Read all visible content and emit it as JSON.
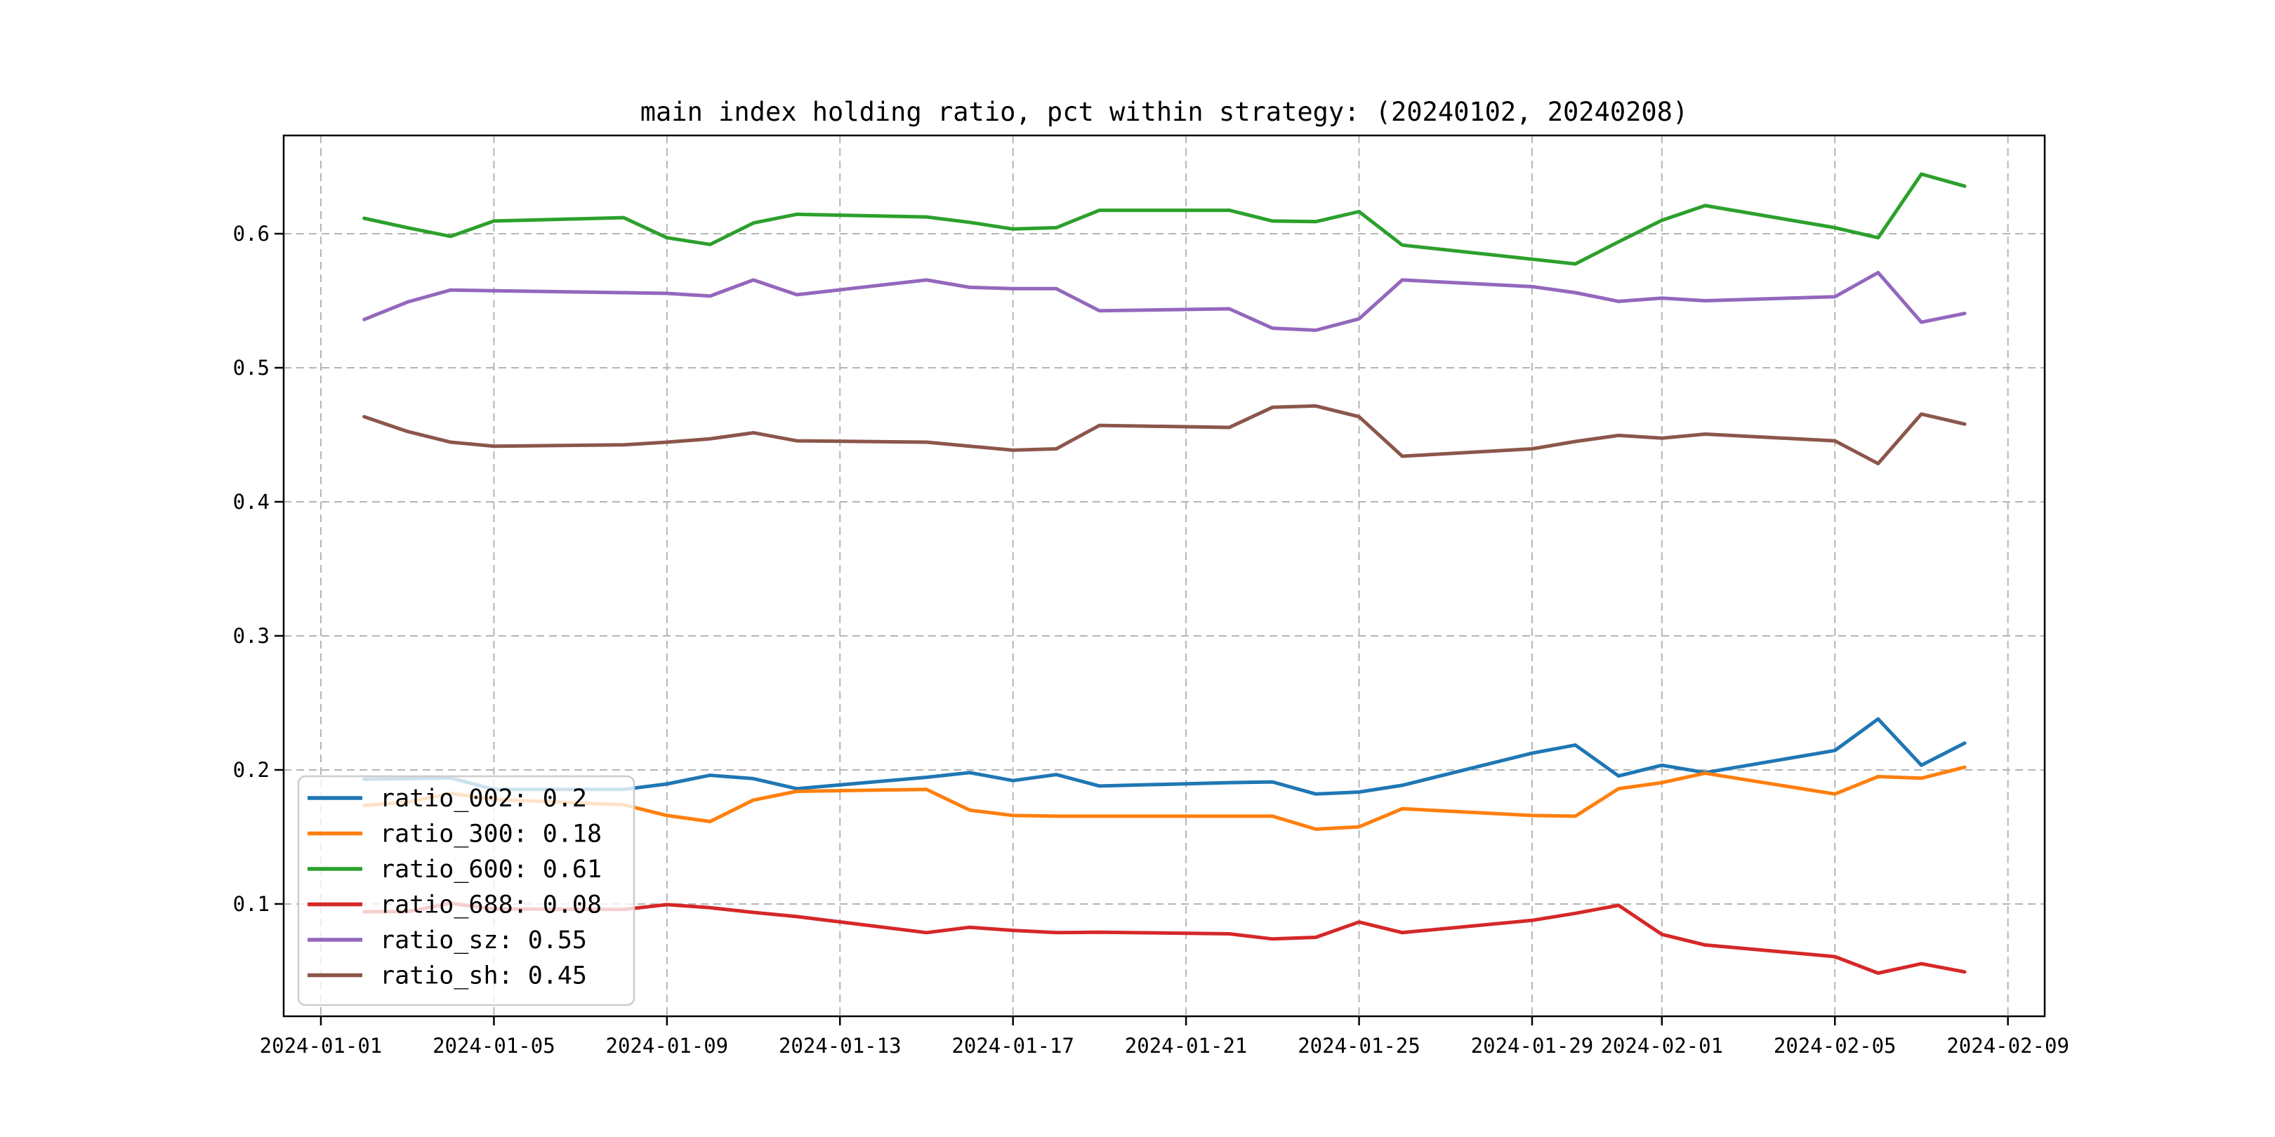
{
  "chart_data": {
    "type": "line",
    "title": "main index holding ratio, pct within strategy: (20240102, 20240208)",
    "grid": true,
    "legend_position": "lower left",
    "background_color": "#ffffff",
    "grid_color": "#b5b5b5",
    "spine_color": "#000000",
    "x_dates": [
      "2024-01-02",
      "2024-01-03",
      "2024-01-04",
      "2024-01-05",
      "2024-01-08",
      "2024-01-09",
      "2024-01-10",
      "2024-01-11",
      "2024-01-12",
      "2024-01-15",
      "2024-01-16",
      "2024-01-17",
      "2024-01-18",
      "2024-01-19",
      "2024-01-22",
      "2024-01-23",
      "2024-01-24",
      "2024-01-25",
      "2024-01-26",
      "2024-01-29",
      "2024-01-30",
      "2024-01-31",
      "2024-02-01",
      "2024-02-02",
      "2024-02-05",
      "2024-02-06",
      "2024-02-07",
      "2024-02-08"
    ],
    "x_ticks": [
      "2024-01-01",
      "2024-01-05",
      "2024-01-09",
      "2024-01-13",
      "2024-01-17",
      "2024-01-21",
      "2024-01-25",
      "2024-01-29",
      "2024-02-01",
      "2024-02-05",
      "2024-02-09"
    ],
    "y_ticks": [
      "0.1",
      "0.2",
      "0.3",
      "0.4",
      "0.5",
      "0.6"
    ],
    "ylim": [
      0.0162,
      0.6733
    ],
    "xlim_days_from_jan1": [
      -0.86,
      39.85
    ],
    "series": [
      {
        "name": "ratio_002",
        "legend_label": "ratio_002: 0.2",
        "color": "#1f77b4",
        "values": [
          0.193,
          0.1935,
          0.194,
          0.1855,
          0.1855,
          0.1895,
          0.196,
          0.1935,
          0.186,
          0.1945,
          0.198,
          0.192,
          0.1965,
          0.188,
          0.1905,
          0.191,
          0.182,
          0.1835,
          0.1885,
          0.2125,
          0.2185,
          0.1955,
          0.2035,
          0.198,
          0.2145,
          0.238,
          0.2035,
          0.22
        ]
      },
      {
        "name": "ratio_300",
        "legend_label": "ratio_300: 0.18",
        "color": "#ff7f0e",
        "values": [
          0.1735,
          0.176,
          0.1825,
          0.178,
          0.174,
          0.166,
          0.1615,
          0.1775,
          0.184,
          0.1855,
          0.17,
          0.166,
          0.1655,
          0.1655,
          0.1655,
          0.1655,
          0.1558,
          0.1575,
          0.171,
          0.166,
          0.1655,
          0.186,
          0.1905,
          0.1975,
          0.182,
          0.195,
          0.1938,
          0.202
        ]
      },
      {
        "name": "ratio_600",
        "legend_label": "ratio_600: 0.61",
        "color": "#2ca02c",
        "values": [
          0.6115,
          0.6045,
          0.598,
          0.6095,
          0.612,
          0.597,
          0.592,
          0.608,
          0.6145,
          0.6125,
          0.6085,
          0.6035,
          0.6045,
          0.6175,
          0.6175,
          0.6095,
          0.609,
          0.6165,
          0.5915,
          0.581,
          0.5775,
          0.594,
          0.61,
          0.621,
          0.6045,
          0.597,
          0.6445,
          0.6355
        ]
      },
      {
        "name": "ratio_688",
        "legend_label": "ratio_688: 0.08",
        "color": "#d62728",
        "values": [
          0.0942,
          0.0942,
          0.1005,
          0.0963,
          0.0959,
          0.0995,
          0.0972,
          0.0937,
          0.0906,
          0.0786,
          0.0826,
          0.0803,
          0.0786,
          0.0789,
          0.0777,
          0.0739,
          0.0751,
          0.0865,
          0.0786,
          0.0878,
          0.093,
          0.099,
          0.0773,
          0.0694,
          0.0607,
          0.0484,
          0.0554,
          0.0493
        ]
      },
      {
        "name": "ratio_sz",
        "legend_label": "ratio_sz: 0.55",
        "color": "#9467bd",
        "values": [
          0.536,
          0.549,
          0.558,
          0.5575,
          0.556,
          0.5555,
          0.5535,
          0.5655,
          0.5545,
          0.5655,
          0.56,
          0.559,
          0.559,
          0.5425,
          0.544,
          0.5295,
          0.528,
          0.5365,
          0.5655,
          0.5605,
          0.556,
          0.5495,
          0.552,
          0.55,
          0.553,
          0.571,
          0.534,
          0.5405
        ]
      },
      {
        "name": "ratio_sh",
        "legend_label": "ratio_sh: 0.45",
        "color": "#8c564b",
        "values": [
          0.4635,
          0.4525,
          0.4445,
          0.4415,
          0.4425,
          0.4445,
          0.447,
          0.4515,
          0.4455,
          0.4445,
          0.4415,
          0.4385,
          0.4395,
          0.457,
          0.4555,
          0.4705,
          0.4715,
          0.4635,
          0.434,
          0.4395,
          0.445,
          0.4495,
          0.4475,
          0.4505,
          0.4455,
          0.4285,
          0.4655,
          0.458
        ]
      }
    ]
  }
}
